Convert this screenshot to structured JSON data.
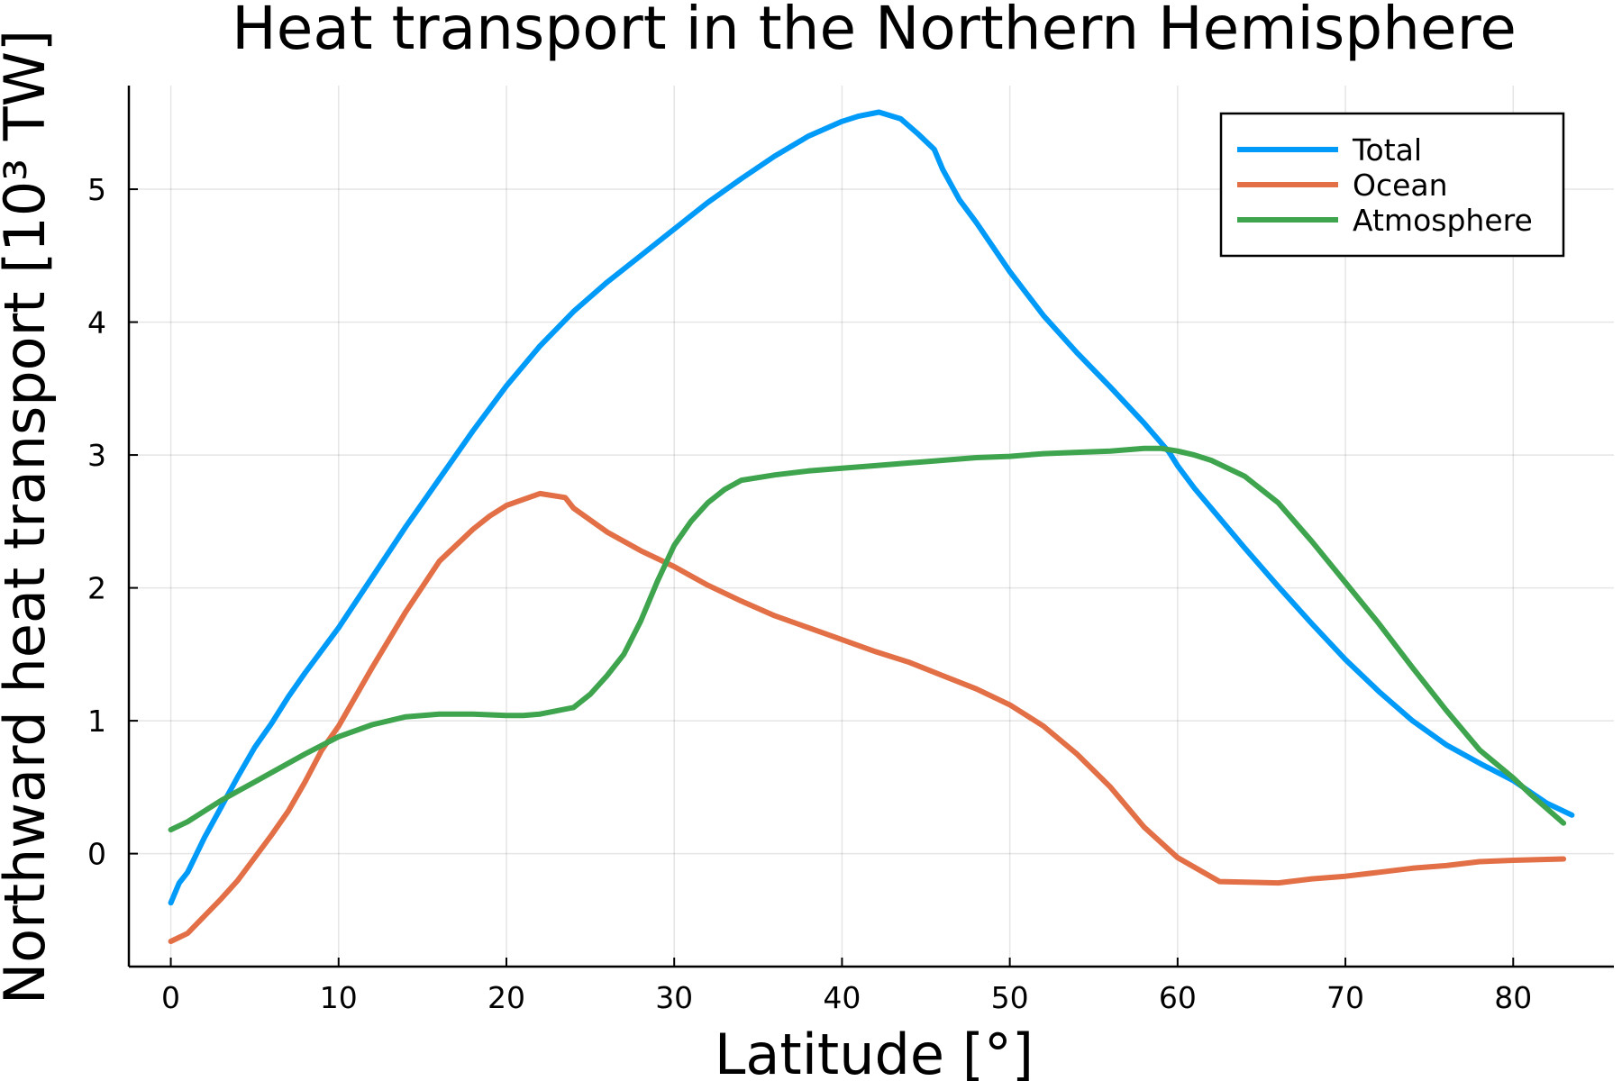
{
  "chart_data": {
    "type": "line",
    "title": "Heat transport in the Northern Hemisphere",
    "xlabel": "Latitude [°]",
    "ylabel": "Northward heat transport [10³ TW]",
    "xlim": [
      -2.5,
      86
    ],
    "ylim": [
      -0.85,
      5.78
    ],
    "xticks": [
      0,
      10,
      20,
      30,
      40,
      50,
      60,
      70,
      80
    ],
    "yticks": [
      0,
      1,
      2,
      3,
      4,
      5
    ],
    "grid": true,
    "legend_position": "top-right",
    "series": [
      {
        "name": "Total",
        "color": "#009af9",
        "x": [
          0,
          0.5,
          1,
          2,
          3,
          4,
          5,
          6,
          7,
          8,
          10,
          12,
          14,
          16,
          18,
          20,
          22,
          24,
          26,
          28,
          30,
          32,
          34,
          36,
          38,
          40,
          41,
          42.2,
          43.5,
          44.5,
          45.5,
          46,
          47,
          48,
          50,
          52,
          54,
          56,
          58,
          59.5,
          60,
          61,
          62,
          64,
          66,
          68,
          70,
          72,
          74,
          76,
          78,
          80,
          82,
          83.5
        ],
        "y": [
          -0.37,
          -0.22,
          -0.14,
          0.12,
          0.35,
          0.58,
          0.8,
          0.98,
          1.18,
          1.36,
          1.7,
          2.08,
          2.46,
          2.82,
          3.18,
          3.52,
          3.82,
          4.08,
          4.3,
          4.5,
          4.7,
          4.9,
          5.08,
          5.25,
          5.4,
          5.51,
          5.55,
          5.58,
          5.53,
          5.42,
          5.3,
          5.15,
          4.92,
          4.75,
          4.38,
          4.05,
          3.77,
          3.51,
          3.24,
          3.02,
          2.92,
          2.75,
          2.6,
          2.3,
          2.01,
          1.73,
          1.46,
          1.22,
          1.0,
          0.82,
          0.68,
          0.55,
          0.38,
          0.29
        ]
      },
      {
        "name": "Ocean",
        "color": "#e26f46",
        "x": [
          0,
          1,
          2,
          3,
          4,
          5,
          6,
          7,
          8,
          9,
          10,
          12,
          14,
          16,
          18,
          19,
          20,
          22,
          23.5,
          24,
          26,
          28,
          30,
          32,
          34,
          36,
          38,
          40,
          42,
          44,
          46,
          48,
          50,
          52,
          54,
          56,
          58,
          60,
          62.5,
          66,
          68,
          70,
          72,
          74,
          76,
          78,
          80,
          83
        ],
        "y": [
          -0.66,
          -0.6,
          -0.47,
          -0.34,
          -0.2,
          -0.03,
          0.14,
          0.32,
          0.54,
          0.78,
          0.96,
          1.4,
          1.82,
          2.2,
          2.44,
          2.54,
          2.62,
          2.71,
          2.68,
          2.6,
          2.42,
          2.28,
          2.16,
          2.02,
          1.9,
          1.79,
          1.7,
          1.61,
          1.52,
          1.44,
          1.34,
          1.24,
          1.12,
          0.96,
          0.75,
          0.5,
          0.2,
          -0.03,
          -0.21,
          -0.22,
          -0.19,
          -0.17,
          -0.14,
          -0.11,
          -0.09,
          -0.06,
          -0.05,
          -0.04
        ]
      },
      {
        "name": "Atmosphere",
        "color": "#3ea44e",
        "x": [
          0,
          1,
          2,
          3,
          4,
          5,
          6,
          8,
          10,
          12,
          14,
          16,
          18,
          20,
          21,
          22,
          24,
          25,
          26,
          27,
          28,
          29,
          30,
          31,
          32,
          33,
          34,
          36,
          38,
          40,
          42,
          44,
          46,
          48,
          50,
          52,
          54,
          56,
          58,
          59,
          60,
          61,
          62,
          64,
          66,
          68,
          70,
          72,
          74,
          76,
          78,
          80,
          81,
          82,
          83
        ],
        "y": [
          0.18,
          0.24,
          0.32,
          0.4,
          0.47,
          0.54,
          0.61,
          0.75,
          0.88,
          0.97,
          1.03,
          1.05,
          1.05,
          1.04,
          1.04,
          1.05,
          1.1,
          1.2,
          1.34,
          1.5,
          1.75,
          2.05,
          2.32,
          2.5,
          2.64,
          2.74,
          2.81,
          2.85,
          2.88,
          2.9,
          2.92,
          2.94,
          2.96,
          2.98,
          2.99,
          3.01,
          3.02,
          3.03,
          3.05,
          3.05,
          3.03,
          3.0,
          2.96,
          2.84,
          2.64,
          2.35,
          2.04,
          1.73,
          1.4,
          1.08,
          0.78,
          0.57,
          0.45,
          0.34,
          0.23
        ]
      }
    ]
  }
}
